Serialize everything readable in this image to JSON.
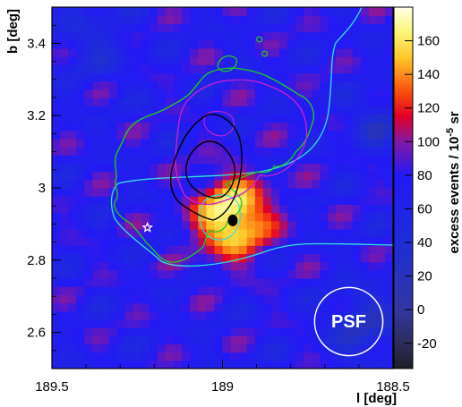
{
  "chart_data": {
    "type": "heatmap",
    "title": "",
    "xlabel": "l [deg]",
    "ylabel": "b [deg]",
    "xlim": [
      189.5,
      188.5
    ],
    "ylim": [
      2.5,
      3.5
    ],
    "x_ticks": [
      {
        "value": 189.5,
        "label": "189.5"
      },
      {
        "value": 189.0,
        "label": "189"
      },
      {
        "value": 188.5,
        "label": "188.5"
      }
    ],
    "y_ticks": [
      {
        "value": 2.6,
        "label": "2.6"
      },
      {
        "value": 2.8,
        "label": "2.8"
      },
      {
        "value": 3.0,
        "label": "3"
      },
      {
        "value": 3.2,
        "label": "3.2"
      },
      {
        "value": 3.4,
        "label": "3.4"
      }
    ],
    "colorbar": {
      "label": "excess events / 10",
      "label_exp": "-5",
      "label_suffix": " sr",
      "range": [
        -35,
        180
      ],
      "ticks": [
        {
          "value": -20,
          "label": "-20"
        },
        {
          "value": 0,
          "label": "0"
        },
        {
          "value": 20,
          "label": "20"
        },
        {
          "value": 40,
          "label": "40"
        },
        {
          "value": 60,
          "label": "60"
        },
        {
          "value": 80,
          "label": "80"
        },
        {
          "value": 100,
          "label": "100"
        },
        {
          "value": 120,
          "label": "120"
        },
        {
          "value": 140,
          "label": "140"
        },
        {
          "value": 160,
          "label": "160"
        }
      ]
    },
    "background_level": 75,
    "hotspot": {
      "l": 188.97,
      "b": 2.92,
      "peak": 180,
      "sigma_deg": 0.075
    },
    "source_marker": {
      "l": 188.97,
      "b": 2.91,
      "symbol": "filled-circle"
    },
    "star_marker": {
      "l": 189.22,
      "b": 2.89,
      "symbol": "open-star"
    },
    "psf_label": "PSF",
    "psf_circle": {
      "l": 188.63,
      "b": 2.63,
      "radius_deg": 0.1
    },
    "colors": {
      "green_contour": "#1fcf1f",
      "magenta_contour": "#d020d0",
      "cyan_contour": "#33e0e0",
      "black_contour": "#000000"
    }
  }
}
